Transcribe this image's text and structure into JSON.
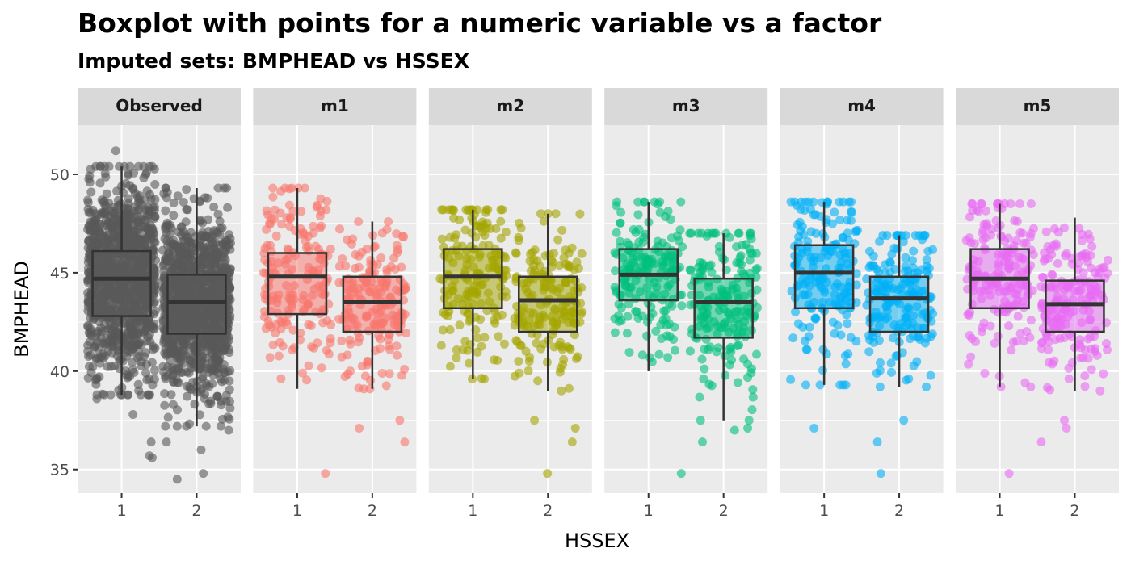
{
  "chart_data": {
    "type": "boxplot",
    "title": "Boxplot with points for a numeric variable vs a factor",
    "subtitle": "Imputed sets:  BMPHEAD vs HSSEX",
    "xlabel": "HSSEX",
    "ylabel": "BMPHEAD",
    "categories": [
      "1",
      "2"
    ],
    "y_ticks": [
      35,
      40,
      45,
      50
    ],
    "ylim": [
      33.8,
      52.5
    ],
    "grid": true,
    "legend": "none",
    "panels": [
      {
        "name": "Observed",
        "color": "#595959",
        "n_points": [
          1100,
          1100
        ],
        "boxes": [
          {
            "category": "1",
            "whisker_low": 38.8,
            "q1": 42.8,
            "median": 44.7,
            "q3": 46.1,
            "whisker_high": 50.4
          },
          {
            "category": "2",
            "whisker_low": 37.2,
            "q1": 41.9,
            "median": 43.5,
            "q3": 44.9,
            "whisker_high": 49.3
          }
        ],
        "outliers": [
          {
            "category": "1",
            "values": [
              51.2,
              50.4,
              35.7,
              35.6,
              36.4,
              38.6,
              37.8
            ]
          },
          {
            "category": "2",
            "values": [
              34.5,
              34.8,
              36.0,
              36.4,
              37.0,
              49.3,
              48.9,
              37.2
            ]
          }
        ]
      },
      {
        "name": "m1",
        "color": "#F8766D",
        "n_points": [
          180,
          180
        ],
        "boxes": [
          {
            "category": "1",
            "whisker_low": 39.1,
            "q1": 42.9,
            "median": 44.8,
            "q3": 46.0,
            "whisker_high": 49.3
          },
          {
            "category": "2",
            "whisker_low": 39.1,
            "q1": 42.0,
            "median": 43.5,
            "q3": 44.8,
            "whisker_high": 47.6
          }
        ],
        "outliers": [
          {
            "category": "1",
            "values": [
              34.8
            ]
          },
          {
            "category": "2",
            "values": [
              37.5,
              37.1,
              36.4
            ]
          }
        ]
      },
      {
        "name": "m2",
        "color": "#A3A500",
        "n_points": [
          180,
          180
        ],
        "boxes": [
          {
            "category": "1",
            "whisker_low": 39.6,
            "q1": 43.2,
            "median": 44.8,
            "q3": 46.2,
            "whisker_high": 48.2
          },
          {
            "category": "2",
            "whisker_low": 39.0,
            "q1": 42.0,
            "median": 43.6,
            "q3": 44.8,
            "whisker_high": 48.0
          }
        ],
        "outliers": [
          {
            "category": "1",
            "values": []
          },
          {
            "category": "2",
            "values": [
              37.1,
              36.4,
              34.8,
              37.5
            ]
          }
        ]
      },
      {
        "name": "m3",
        "color": "#00BF7D",
        "n_points": [
          180,
          180
        ],
        "boxes": [
          {
            "category": "1",
            "whisker_low": 40.0,
            "q1": 43.6,
            "median": 44.9,
            "q3": 46.2,
            "whisker_high": 48.6
          },
          {
            "category": "2",
            "whisker_low": 37.5,
            "q1": 41.7,
            "median": 43.5,
            "q3": 44.7,
            "whisker_high": 47.0
          }
        ],
        "outliers": [
          {
            "category": "1",
            "values": [
              34.8
            ]
          },
          {
            "category": "2",
            "values": [
              37.0,
              36.4,
              37.5,
              37.1
            ]
          }
        ]
      },
      {
        "name": "m4",
        "color": "#00B0F6",
        "n_points": [
          180,
          180
        ],
        "boxes": [
          {
            "category": "1",
            "whisker_low": 39.3,
            "q1": 43.2,
            "median": 45.0,
            "q3": 46.4,
            "whisker_high": 48.6
          },
          {
            "category": "2",
            "whisker_low": 39.2,
            "q1": 42.0,
            "median": 43.7,
            "q3": 44.8,
            "whisker_high": 46.9
          }
        ],
        "outliers": [
          {
            "category": "1",
            "values": [
              37.1
            ]
          },
          {
            "category": "2",
            "values": [
              36.4,
              34.8,
              37.5
            ]
          }
        ]
      },
      {
        "name": "m5",
        "color": "#E76BF3",
        "n_points": [
          180,
          180
        ],
        "boxes": [
          {
            "category": "1",
            "whisker_low": 39.2,
            "q1": 43.2,
            "median": 44.7,
            "q3": 46.2,
            "whisker_high": 48.5
          },
          {
            "category": "2",
            "whisker_low": 39.0,
            "q1": 42.0,
            "median": 43.4,
            "q3": 44.6,
            "whisker_high": 47.8
          }
        ],
        "outliers": [
          {
            "category": "1",
            "values": [
              34.8
            ]
          },
          {
            "category": "2",
            "values": [
              37.5,
              36.4,
              37.1
            ]
          }
        ]
      }
    ]
  }
}
